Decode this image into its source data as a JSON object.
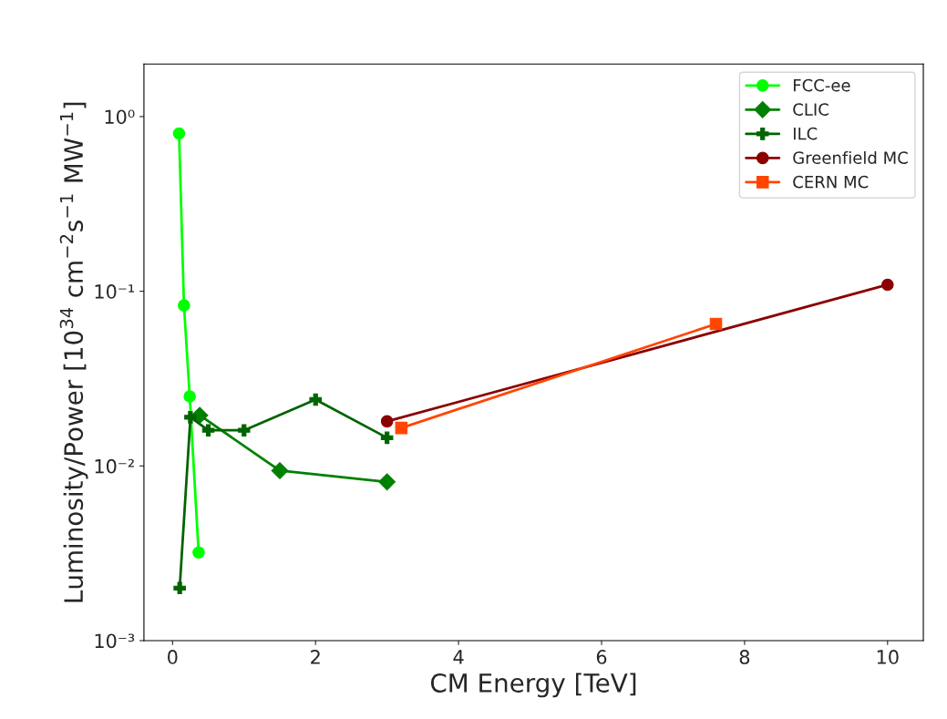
{
  "chart_data": {
    "type": "line",
    "xlabel": "CM Energy [TeV]",
    "ylabel": "Luminosity/Power [10$^{34}$ cm$^{−2}$s$^{−1}$ MW$^{−1}$]",
    "log": "y",
    "xlim": [
      -0.4,
      10.5
    ],
    "xticks": [
      0,
      2,
      4,
      6,
      8,
      10
    ],
    "ylim": [
      0.001,
      2
    ],
    "yticks": [
      {
        "value": 0.001,
        "label": "10⁻³"
      },
      {
        "value": 0.01,
        "label": "10⁻²"
      },
      {
        "value": 0.1,
        "label": "10⁻¹"
      },
      {
        "value": 1,
        "label": "10⁰"
      }
    ],
    "legend": "top right",
    "grid": false,
    "series": [
      {
        "name": "FCC-ee",
        "color": "#00ff00",
        "marker": "circle",
        "x": [
          0.091,
          0.16,
          0.24,
          0.365
        ],
        "values": [
          0.8,
          0.083,
          0.025,
          0.0032
        ]
      },
      {
        "name": "CLIC",
        "color": "#008000",
        "marker": "diamond",
        "x": [
          0.38,
          1.5,
          3.0
        ],
        "values": [
          0.0195,
          0.0094,
          0.0081
        ]
      },
      {
        "name": "ILC",
        "color": "#006400",
        "marker": "cross",
        "x": [
          0.1,
          0.25,
          0.5,
          1.0,
          2.0,
          3.0
        ],
        "values": [
          0.002,
          0.019,
          0.016,
          0.016,
          0.024,
          0.0145
        ]
      },
      {
        "name": "Greenfield MC",
        "color": "#8b0000",
        "marker": "circle",
        "x": [
          3.0,
          10.0
        ],
        "values": [
          0.018,
          0.109
        ]
      },
      {
        "name": "CERN MC",
        "color": "#ff4500",
        "marker": "square",
        "x": [
          3.2,
          7.6
        ],
        "values": [
          0.0165,
          0.065
        ]
      }
    ]
  }
}
